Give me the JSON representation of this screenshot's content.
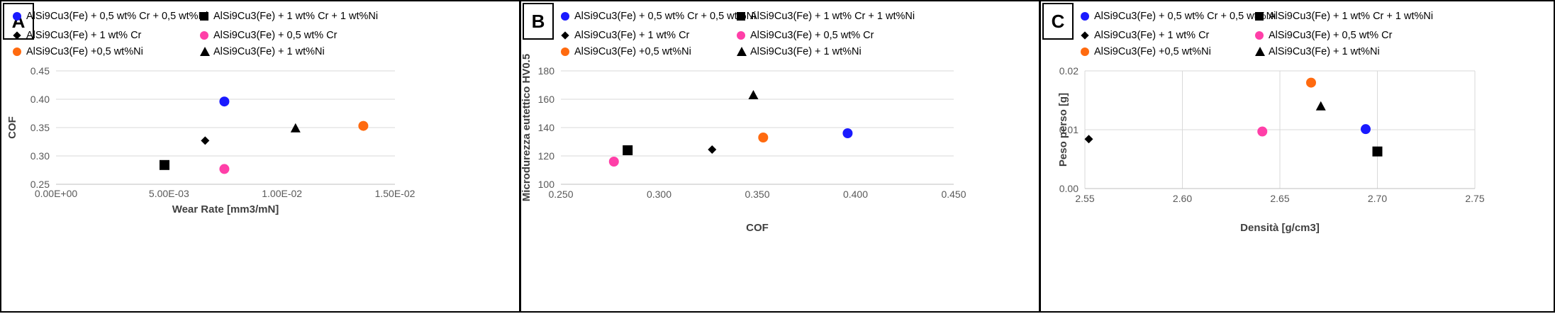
{
  "legend_labels": {
    "cr05_ni05": "AlSi9Cu3(Fe) + 0,5 wt% Cr + 0,5 wt%Ni",
    "cr1_ni1": "AlSi9Cu3(Fe) + 1 wt% Cr + 1 wt%Ni",
    "cr1": "AlSi9Cu3(Fe) + 1 wt% Cr",
    "cr05": "AlSi9Cu3(Fe) + 0,5 wt% Cr",
    "ni05": "AlSi9Cu3(Fe) +0,5 wt%Ni",
    "ni1": "AlSi9Cu3(Fe) + 1 wt%Ni"
  },
  "series_styles": {
    "cr05_ni05": {
      "marker": "circle",
      "color": "#1a1aff"
    },
    "cr1_ni1": {
      "marker": "square",
      "color": "#000000"
    },
    "cr1": {
      "marker": "diamond",
      "color": "#000000"
    },
    "cr05": {
      "marker": "circle",
      "color": "#ff3fa8"
    },
    "ni05": {
      "marker": "circle",
      "color": "#ff6a0f"
    },
    "ni1": {
      "marker": "triangle",
      "color": "#000000"
    }
  },
  "chart_data": [
    {
      "panel": "A",
      "type": "scatter",
      "xlabel": "Wear Rate [mm3/mN]",
      "ylabel": "COF",
      "xlim": [
        0,
        0.015
      ],
      "ylim": [
        0.25,
        0.45
      ],
      "x_ticks": [
        0,
        0.005,
        0.01,
        0.015
      ],
      "x_tick_labels": [
        "0.00E+00",
        "5.00E-03",
        "1.00E-02",
        "1.50E-02"
      ],
      "y_ticks": [
        0.25,
        0.3,
        0.35,
        0.4,
        0.45
      ],
      "y_tick_labels": [
        "0.25",
        "0.30",
        "0.35",
        "0.40",
        "0.45"
      ],
      "grid": "horizontal",
      "points": {
        "cr05_ni05": [
          0.00745,
          0.396
        ],
        "cr1_ni1": [
          0.0048,
          0.284
        ],
        "cr1": [
          0.0066,
          0.327
        ],
        "cr05": [
          0.00745,
          0.277
        ],
        "ni05": [
          0.0136,
          0.353
        ],
        "ni1": [
          0.0106,
          0.349
        ]
      }
    },
    {
      "panel": "B",
      "type": "scatter",
      "xlabel": "COF",
      "ylabel": "Microdurezza eutettico HV0.5",
      "xlim": [
        0.25,
        0.45
      ],
      "ylim": [
        100,
        180
      ],
      "x_ticks": [
        0.25,
        0.3,
        0.35,
        0.4,
        0.45
      ],
      "x_tick_labels": [
        "0.250",
        "0.300",
        "0.350",
        "0.400",
        "0.450"
      ],
      "y_ticks": [
        100,
        120,
        140,
        160,
        180
      ],
      "y_tick_labels": [
        "100",
        "120",
        "140",
        "160",
        "180"
      ],
      "grid": "horizontal",
      "points": {
        "cr05_ni05": [
          0.396,
          136
        ],
        "cr1_ni1": [
          0.284,
          124
        ],
        "cr1": [
          0.327,
          124.5
        ],
        "cr05": [
          0.277,
          116
        ],
        "ni05": [
          0.353,
          133
        ],
        "ni1": [
          0.348,
          163
        ]
      }
    },
    {
      "panel": "C",
      "type": "scatter",
      "xlabel": "Densità [g/cm3]",
      "ylabel": "Peso perso [g]",
      "xlim": [
        2.55,
        2.75
      ],
      "ylim": [
        0,
        0.02
      ],
      "x_ticks": [
        2.55,
        2.6,
        2.65,
        2.7,
        2.75
      ],
      "x_tick_labels": [
        "2.55",
        "2.60",
        "2.65",
        "2.70",
        "2.75"
      ],
      "y_ticks": [
        0,
        0.01,
        0.02
      ],
      "y_tick_labels": [
        "0.00",
        "0.01",
        "0.02"
      ],
      "grid": "both",
      "points": {
        "cr05_ni05": [
          2.694,
          0.0101
        ],
        "cr1_ni1": [
          2.7,
          0.0063
        ],
        "cr1": [
          2.552,
          0.0084
        ],
        "cr05": [
          2.641,
          0.0097
        ],
        "ni05": [
          2.666,
          0.018
        ],
        "ni1": [
          2.671,
          0.014
        ]
      }
    }
  ]
}
